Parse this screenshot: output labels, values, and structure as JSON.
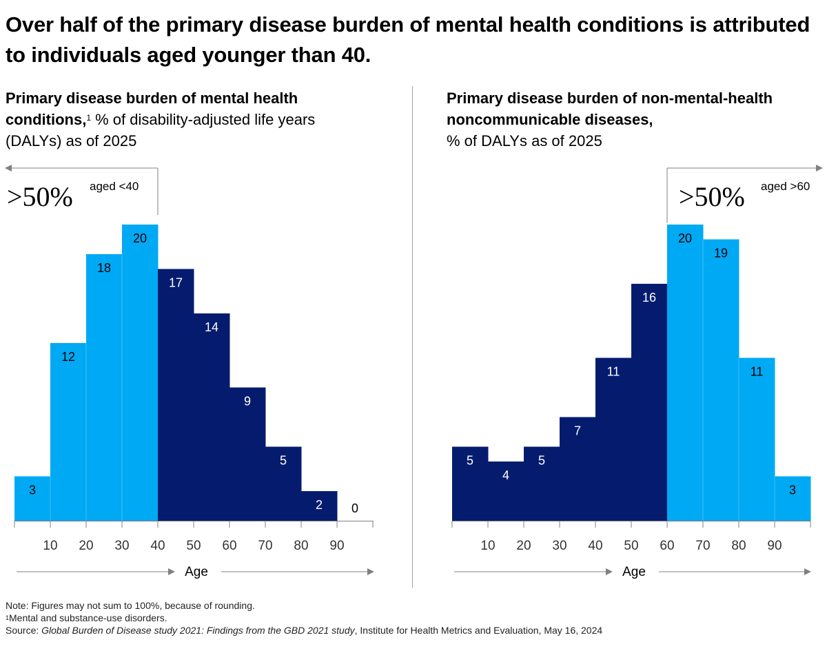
{
  "headline": "Over half of the primary disease burden of mental health conditions is attributed to individuals aged younger than 40.",
  "colors": {
    "light": "#00A9F4",
    "dark": "#051C6E",
    "axis": "#808080",
    "divider": "#a0a0a0"
  },
  "chart_data": [
    {
      "type": "bar",
      "title_bold": "Primary disease burden of mental health conditions,",
      "title_sup": "1",
      "title_rest": " % of disability-adjusted life years (DALYs) as of 2025",
      "bins": [
        "0-10",
        "10-20",
        "20-30",
        "30-40",
        "40-50",
        "50-60",
        "60-70",
        "70-80",
        "80-90",
        "90-100"
      ],
      "values": [
        3,
        12,
        18,
        20,
        17,
        14,
        9,
        5,
        2,
        0
      ],
      "highlight": [
        "light",
        "light",
        "light",
        "light",
        "dark",
        "dark",
        "dark",
        "dark",
        "dark",
        "dark"
      ],
      "tick_labels": [
        "10",
        "20",
        "30",
        "40",
        "50",
        "60",
        "70",
        "80",
        "90"
      ],
      "xlabel": "Age",
      "annotation": {
        "big": ">50%",
        "small": "aged <40",
        "direction": "left",
        "boundary_age": 40
      }
    },
    {
      "type": "bar",
      "title_bold": "Primary disease burden of non-mental-health noncommunicable diseases,",
      "title_rest": "% of DALYs as of 2025",
      "bins": [
        "0-10",
        "10-20",
        "20-30",
        "30-40",
        "40-50",
        "50-60",
        "60-70",
        "70-80",
        "80-90",
        "90-100"
      ],
      "values": [
        5,
        4,
        5,
        7,
        11,
        16,
        20,
        19,
        11,
        3
      ],
      "highlight": [
        "dark",
        "dark",
        "dark",
        "dark",
        "dark",
        "dark",
        "light",
        "light",
        "light",
        "light"
      ],
      "tick_labels": [
        "10",
        "20",
        "30",
        "40",
        "50",
        "60",
        "70",
        "80",
        "90"
      ],
      "xlabel": "Age",
      "annotation": {
        "big": ">50%",
        "small": "aged >60",
        "direction": "right",
        "boundary_age": 60
      }
    }
  ],
  "footer": {
    "note": "Note: Figures may not sum to 100%, because of rounding.",
    "footnote_sup": "1",
    "footnote_text": "Mental and substance-use disorders.",
    "source_prefix": "Source: ",
    "source_title": "Global Burden of Disease study 2021: Findings from the GBD 2021 study",
    "source_rest": ", Institute for Health Metrics and Evaluation, May 16, 2024"
  }
}
